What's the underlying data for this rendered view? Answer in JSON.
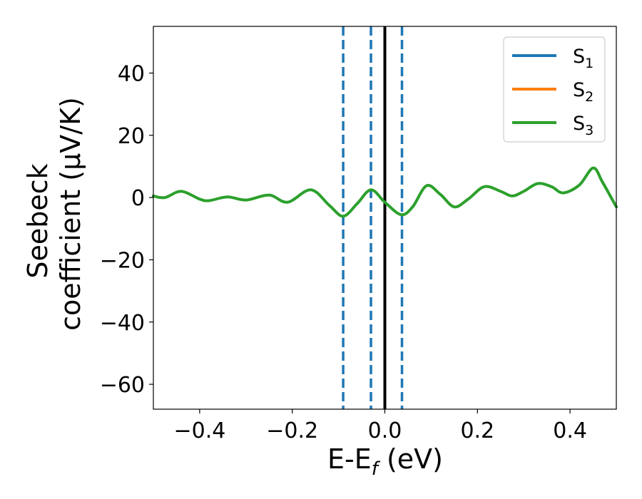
{
  "chart_data": {
    "type": "line",
    "xlabel": "E-E",
    "xlabel_sub": "f",
    "xlabel_unit": " (eV)",
    "ylabel_line1": "Seebeck",
    "ylabel_line2": "coefficient  (μV/K)",
    "xlim": [
      -0.5,
      0.5
    ],
    "ylim": [
      -68,
      55
    ],
    "xticks": [
      -0.4,
      -0.2,
      0.0,
      0.2,
      0.4
    ],
    "xtick_labels": [
      "−0.4",
      "−0.2",
      "0.0",
      "0.2",
      "0.4"
    ],
    "yticks": [
      40,
      20,
      0,
      -20,
      -40,
      -60
    ],
    "ytick_labels": [
      "40",
      "20",
      "0",
      "−20",
      "−40",
      "−60"
    ],
    "grid": false,
    "legend_position": "top-right",
    "series": [
      {
        "name": "S",
        "sub": "1",
        "color": "#1f77b4"
      },
      {
        "name": "S",
        "sub": "2",
        "color": "#ff7f0e"
      },
      {
        "name": "S",
        "sub": "3",
        "color": "#2ca02c",
        "x": [
          -0.5,
          -0.475,
          -0.44,
          -0.4,
          -0.38,
          -0.34,
          -0.3,
          -0.25,
          -0.21,
          -0.16,
          -0.12,
          -0.09,
          -0.06,
          -0.03,
          0.0,
          0.035,
          0.06,
          0.09,
          0.12,
          0.15,
          0.18,
          0.215,
          0.25,
          0.275,
          0.3,
          0.33,
          0.36,
          0.385,
          0.42,
          0.45,
          0.47,
          0.5
        ],
        "y": [
          0.5,
          0.0,
          2.0,
          -0.5,
          -1.0,
          0.2,
          -0.8,
          0.8,
          -1.5,
          2.5,
          -2.5,
          -6.0,
          -2.0,
          2.5,
          -1.5,
          -5.5,
          -3.0,
          3.8,
          1.0,
          -3.0,
          -0.5,
          3.5,
          2.0,
          0.5,
          2.0,
          4.5,
          3.5,
          1.5,
          4.0,
          9.5,
          5.0,
          -3.0
        ]
      }
    ],
    "vlines": [
      {
        "x": -0.09,
        "style": "dashed",
        "color": "#1f77b4"
      },
      {
        "x": -0.03,
        "style": "dashed",
        "color": "#1f77b4"
      },
      {
        "x": 0.0,
        "style": "solid",
        "color": "#000000"
      },
      {
        "x": 0.037,
        "style": "dashed",
        "color": "#1f77b4"
      }
    ]
  }
}
